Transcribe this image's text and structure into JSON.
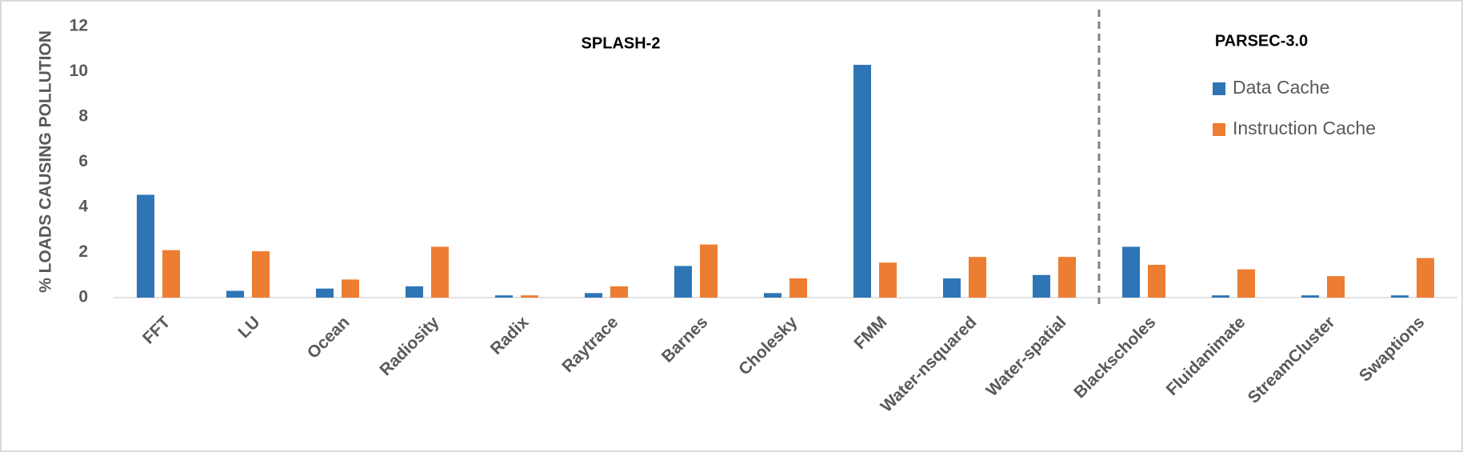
{
  "chart_data": {
    "type": "bar",
    "y_label": "% LOADS CAUSING POLLUTION",
    "annotations": [
      "SPLASH-2",
      "PARSEC-3.0"
    ],
    "categories": [
      "FFT",
      "LU",
      "Ocean",
      "Radiosity",
      "Radix",
      "Raytrace",
      "Barnes",
      "Cholesky",
      "FMM",
      "Water-nsquared",
      "Water-spatial",
      "Blackscholes",
      "Fluidanimate",
      "StreamCluster",
      "Swaptions"
    ],
    "series": [
      {
        "name": "Data Cache",
        "color": "#2e75b6",
        "values": [
          4.55,
          0.3,
          0.4,
          0.5,
          0.1,
          0.2,
          1.4,
          0.2,
          10.3,
          0.85,
          1.0,
          2.25,
          0.1,
          0.1,
          0.1
        ]
      },
      {
        "name": "Instruction Cache",
        "color": "#ed7d31",
        "values": [
          2.1,
          2.05,
          0.8,
          2.25,
          0.1,
          0.5,
          2.35,
          0.85,
          1.55,
          1.8,
          1.8,
          1.45,
          1.25,
          0.95,
          1.75
        ]
      }
    ],
    "ylim": [
      0,
      12
    ],
    "yticks": [
      0,
      2,
      4,
      6,
      8,
      10,
      12
    ],
    "grid": false
  }
}
